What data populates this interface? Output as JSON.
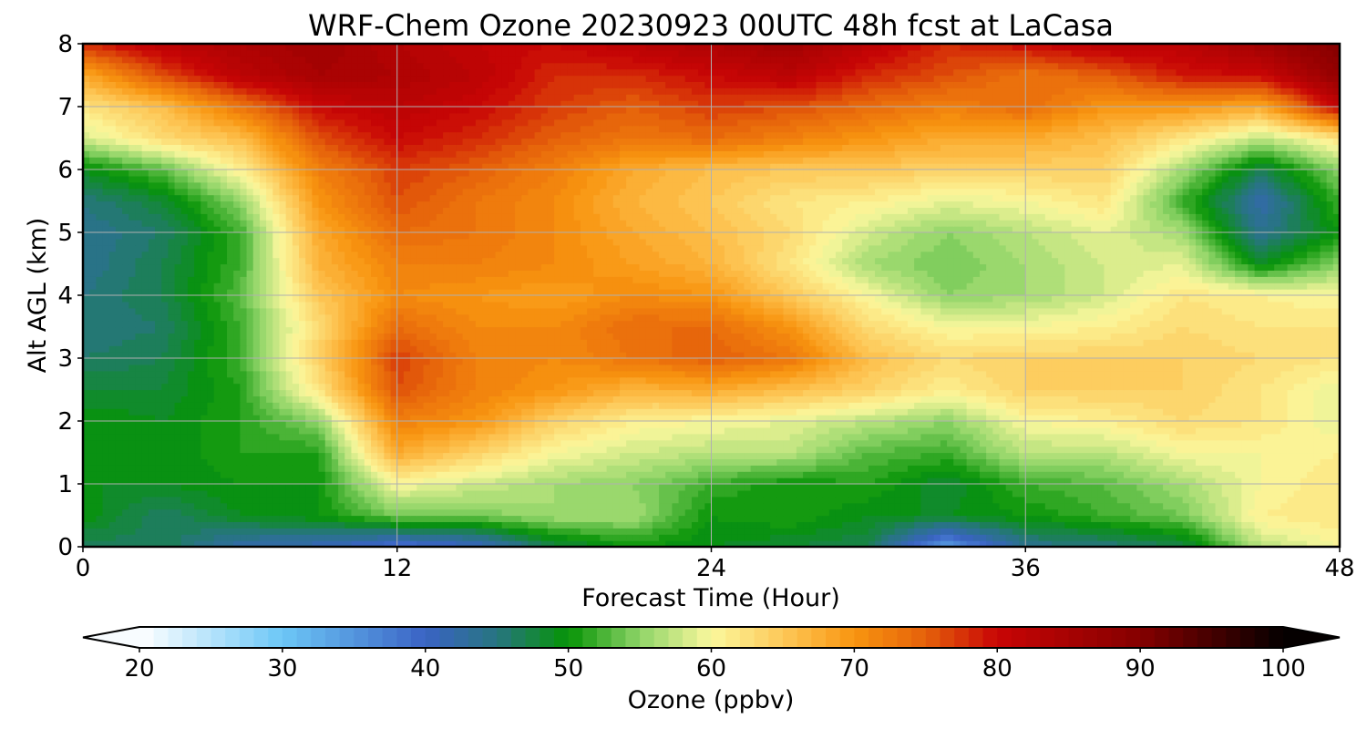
{
  "chart_data": {
    "type": "heatmap",
    "title": "WRF-Chem Ozone  20230923 00UTC 48h fcst at LaCasa",
    "xlabel": "Forecast Time (Hour)",
    "ylabel": "Alt AGL (km)",
    "xlim": [
      0,
      48
    ],
    "ylim": [
      0,
      8
    ],
    "x_ticks": [
      0,
      12,
      24,
      36,
      48
    ],
    "y_ticks": [
      0,
      1,
      2,
      3,
      4,
      5,
      6,
      7,
      8
    ],
    "grid": true,
    "x": [
      0,
      3,
      6,
      9,
      12,
      15,
      18,
      21,
      24,
      27,
      30,
      33,
      36,
      39,
      42,
      45,
      48
    ],
    "y": [
      0,
      0.5,
      1,
      1.5,
      2,
      2.5,
      3,
      3.5,
      4,
      4.5,
      5,
      5.5,
      6,
      6.5,
      7,
      7.5,
      8
    ],
    "values": [
      [
        46,
        47,
        42,
        41,
        38,
        40,
        47,
        50,
        49,
        48,
        47,
        34,
        44,
        45,
        47,
        57,
        60
      ],
      [
        50,
        46,
        49,
        50,
        54,
        54,
        56,
        56,
        50,
        51,
        49,
        49,
        50,
        52,
        54,
        61,
        62
      ],
      [
        49,
        49,
        50,
        50,
        60,
        58,
        56,
        55,
        52,
        50,
        51,
        48,
        52,
        53,
        56,
        60,
        62
      ],
      [
        50,
        49,
        51,
        51,
        68,
        64,
        60,
        58,
        57,
        57,
        53,
        52,
        57,
        57,
        60,
        60,
        61
      ],
      [
        50,
        49,
        51,
        55,
        72,
        70,
        64,
        61,
        60,
        59,
        57,
        55,
        60,
        61,
        63,
        62,
        59
      ],
      [
        48,
        48,
        51,
        62,
        76,
        72,
        70,
        67,
        68,
        66,
        64,
        61,
        64,
        64,
        64,
        62,
        59
      ],
      [
        46,
        47,
        52,
        64,
        77,
        72,
        71,
        73,
        75,
        73,
        66,
        63,
        64,
        64,
        64,
        63,
        62
      ],
      [
        45,
        46,
        52,
        63,
        74,
        71,
        71,
        74,
        74,
        70,
        63,
        60,
        60,
        61,
        63,
        62,
        62
      ],
      [
        45,
        47,
        53,
        65,
        71,
        70,
        69,
        71,
        70,
        65,
        60,
        55,
        56,
        58,
        62,
        61,
        60
      ],
      [
        44,
        47,
        52,
        67,
        72,
        72,
        71,
        69,
        67,
        62,
        56,
        54,
        56,
        58,
        59,
        49,
        55
      ],
      [
        44,
        46,
        52,
        68,
        74,
        73,
        71,
        68,
        66,
        63,
        58,
        55,
        57,
        59,
        56,
        44,
        50
      ],
      [
        45,
        48,
        55,
        70,
        76,
        73,
        71,
        67,
        65,
        62,
        61,
        59,
        60,
        62,
        52,
        42,
        52
      ],
      [
        49,
        53,
        61,
        72,
        77,
        75,
        72,
        68,
        66,
        65,
        65,
        64,
        64,
        64,
        56,
        47,
        55
      ],
      [
        58,
        63,
        66,
        76,
        80,
        78,
        75,
        73,
        74,
        72,
        70,
        68,
        68,
        66,
        62,
        57,
        62
      ],
      [
        62,
        66,
        73,
        80,
        82,
        80,
        77,
        75,
        77,
        76,
        74,
        72,
        74,
        70,
        70,
        68,
        81
      ],
      [
        68,
        76,
        82,
        85,
        84,
        82,
        78,
        78,
        80,
        82,
        78,
        76,
        73,
        75,
        79,
        80,
        88
      ],
      [
        78,
        82,
        84,
        86,
        83,
        81,
        80,
        82,
        84,
        86,
        82,
        78,
        80,
        82,
        82,
        86,
        90
      ]
    ],
    "colorbar": {
      "label": "Ozone  (ppbv)",
      "vmin": 20,
      "vmax": 100,
      "ticks": [
        20,
        30,
        40,
        50,
        60,
        70,
        80,
        90,
        100
      ],
      "extend": "both",
      "levels": 80,
      "stops": [
        {
          "v": 20,
          "c": "#ffffff"
        },
        {
          "v": 30,
          "c": "#6cc7f7"
        },
        {
          "v": 40,
          "c": "#3a63c4"
        },
        {
          "v": 45,
          "c": "#277580"
        },
        {
          "v": 50,
          "c": "#069406"
        },
        {
          "v": 55,
          "c": "#8fd468"
        },
        {
          "v": 60,
          "c": "#fbf89d"
        },
        {
          "v": 65,
          "c": "#fdc858"
        },
        {
          "v": 70,
          "c": "#f89510"
        },
        {
          "v": 75,
          "c": "#e5610a"
        },
        {
          "v": 80,
          "c": "#c80505"
        },
        {
          "v": 90,
          "c": "#850000"
        },
        {
          "v": 100,
          "c": "#050000"
        }
      ]
    }
  }
}
